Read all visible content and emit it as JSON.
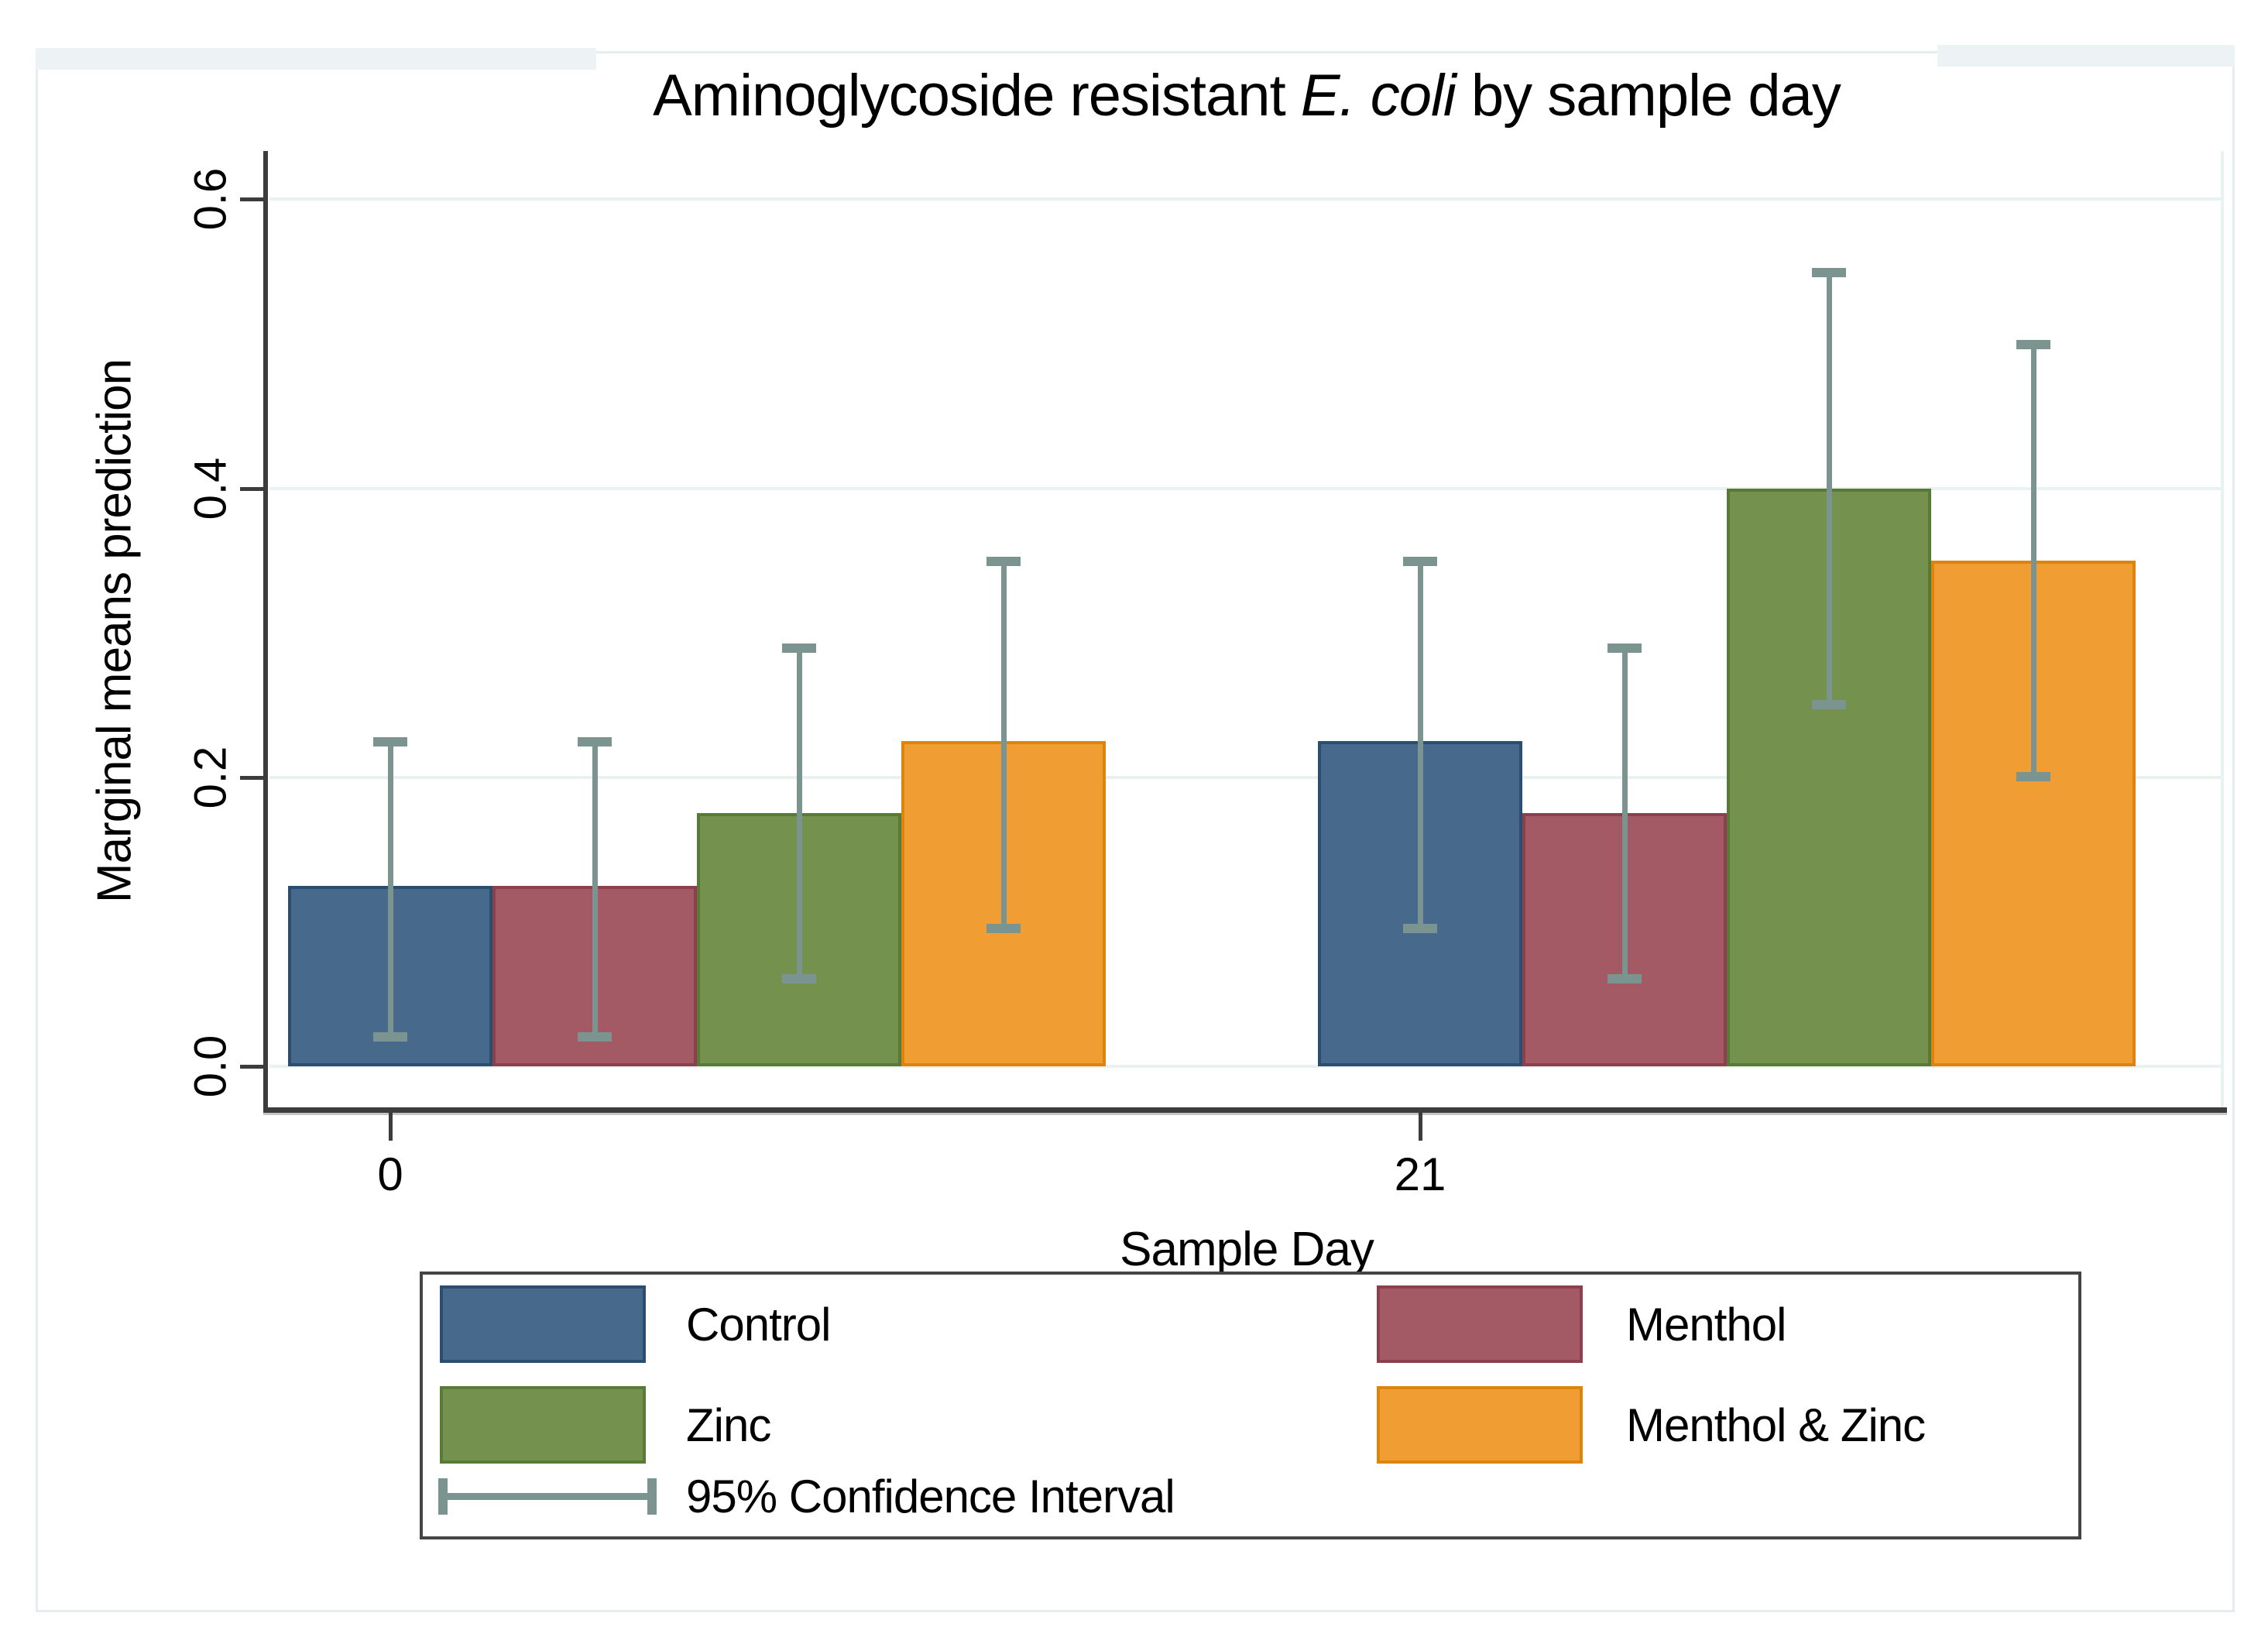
{
  "title": {
    "prefix": "Aminoglycoside resistant ",
    "italic": "E. coli",
    "suffix": " by sample day"
  },
  "y_axis": {
    "label": "Marginal means prediction",
    "ticks": [
      "0.0",
      "0.2",
      "0.4",
      "0.6"
    ]
  },
  "x_axis": {
    "label": "Sample Day",
    "ticks": [
      "0",
      "21"
    ]
  },
  "legend": {
    "ci_label": "95% Confidence Interval"
  },
  "chart_data": {
    "type": "bar",
    "title": "Aminoglycoside resistant E. coli by sample day",
    "xlabel": "Sample Day",
    "ylabel": "Marginal means prediction",
    "categories": [
      "0",
      "21"
    ],
    "ylim": [
      0,
      0.6
    ],
    "yticks": [
      0,
      0.2,
      0.4,
      0.6
    ],
    "ytick_labels": [
      "0.0",
      "0.2",
      "0.4",
      "0.6"
    ],
    "grid": true,
    "legend_position": "bottom",
    "error_bars": "95% Confidence Interval",
    "series": [
      {
        "name": "Control",
        "fill": "#46698c",
        "border": "#2b4e6e",
        "values": [
          0.125,
          0.225
        ],
        "ci_low": [
          0.02,
          0.095
        ],
        "ci_high": [
          0.225,
          0.35
        ]
      },
      {
        "name": "Menthol",
        "fill": "#a35a64",
        "border": "#8c3f4c",
        "values": [
          0.125,
          0.175
        ],
        "ci_low": [
          0.02,
          0.06
        ],
        "ci_high": [
          0.225,
          0.29
        ]
      },
      {
        "name": "Zinc",
        "fill": "#75914e",
        "border": "#597a36",
        "values": [
          0.175,
          0.4
        ],
        "ci_low": [
          0.06,
          0.25
        ],
        "ci_high": [
          0.29,
          0.55
        ]
      },
      {
        "name": "Menthol & Zinc",
        "fill": "#f09d33",
        "border": "#dd840e",
        "values": [
          0.225,
          0.35
        ],
        "ci_low": [
          0.095,
          0.2
        ],
        "ci_high": [
          0.35,
          0.5
        ]
      }
    ],
    "colors": {
      "error_bar": "#7b948f",
      "gridline": "#e9f1f3",
      "axis": "#3c3c3c",
      "axis_shadow": "#c4c4c4",
      "panel_border": "#e6edf0",
      "top_strip": "#edf2f5",
      "legend_border": "#454545"
    }
  }
}
